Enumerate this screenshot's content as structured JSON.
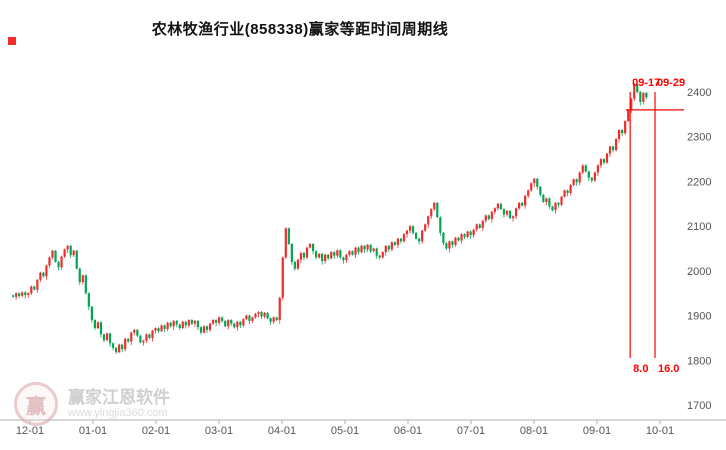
{
  "title": "农林牧渔行业(858338)赢家等距时间周期线",
  "corner_marker_color": "#f22b2b",
  "watermark": {
    "name": "赢家江恩软件",
    "url": "www.yingjia360.com"
  },
  "chart_data": {
    "type": "candlestick",
    "title": "农林牧渔行业(858338)赢家等距时间周期线",
    "ylabel": "",
    "xlabel": "",
    "ylim": [
      1700,
      2400
    ],
    "grid": false,
    "y_axis_side": "right",
    "y_ticks": [
      2400,
      2300,
      2200,
      2100,
      2000,
      1900,
      1800,
      1700
    ],
    "x_ticks": [
      "12-01",
      "01-01",
      "02-01",
      "03-01",
      "04-01",
      "05-01",
      "06-01",
      "07-01",
      "08-01",
      "09-01",
      "10-01"
    ],
    "up_color": "#f circled",
    "first_open": 1945,
    "closes": [
      1942,
      1950,
      1944,
      1952,
      1946,
      1950,
      1965,
      1958,
      1980,
      1996,
      1988,
      2012,
      2030,
      2045,
      2020,
      2008,
      2032,
      2048,
      2056,
      2035,
      2045,
      2005,
      1975,
      1990,
      1950,
      1920,
      1890,
      1872,
      1885,
      1858,
      1845,
      1860,
      1838,
      1828,
      1818,
      1835,
      1825,
      1848,
      1842,
      1862,
      1868,
      1855,
      1840,
      1844,
      1858,
      1850,
      1866,
      1872,
      1865,
      1878,
      1870,
      1884,
      1876,
      1888,
      1880,
      1872,
      1886,
      1878,
      1890,
      1882,
      1888,
      1874,
      1862,
      1876,
      1868,
      1882,
      1890,
      1884,
      1896,
      1888,
      1876,
      1890,
      1882,
      1874,
      1886,
      1878,
      1892,
      1900,
      1888,
      1896,
      1904,
      1908,
      1898,
      1906,
      1894,
      1886,
      1896,
      1890,
      1940,
      2030,
      2095,
      2060,
      2020,
      2005,
      2025,
      2040,
      2030,
      2052,
      2060,
      2044,
      2030,
      2038,
      2022,
      2036,
      2028,
      2042,
      2034,
      2046,
      2030,
      2024,
      2036,
      2044,
      2036,
      2052,
      2042,
      2056,
      2048,
      2058,
      2044,
      2050,
      2034,
      2030,
      2042,
      2056,
      2048,
      2064,
      2058,
      2072,
      2066,
      2082,
      2090,
      2100,
      2085,
      2072,
      2066,
      2090,
      2104,
      2122,
      2138,
      2152,
      2120,
      2085,
      2062,
      2050,
      2066,
      2058,
      2074,
      2068,
      2082,
      2076,
      2088,
      2080,
      2092,
      2104,
      2096,
      2112,
      2124,
      2116,
      2132,
      2140,
      2150,
      2138,
      2126,
      2134,
      2118,
      2122,
      2140,
      2152,
      2146,
      2168,
      2180,
      2196,
      2206,
      2188,
      2170,
      2154,
      2162,
      2144,
      2136,
      2152,
      2148,
      2166,
      2180,
      2174,
      2192,
      2205,
      2198,
      2220,
      2236,
      2222,
      2208,
      2202,
      2220,
      2236,
      2250,
      2242,
      2262,
      2278,
      2270,
      2295,
      2315,
      2308,
      2335,
      2360,
      2385,
      2418,
      2400,
      2378,
      2398,
      2388
    ],
    "colors": {
      "up": "#f22b2b",
      "down": "#00a651",
      "annotation": "#ff0000"
    },
    "cycle_lines": [
      {
        "date": "09-17",
        "value": "8.0"
      },
      {
        "date": "09-29",
        "value": "16.0"
      }
    ],
    "target_line": {
      "level": 2360
    }
  }
}
